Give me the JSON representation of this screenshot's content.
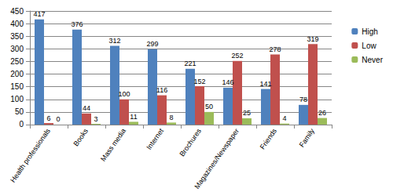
{
  "chart_data": {
    "type": "bar",
    "categories": [
      "Health professionals",
      "Books",
      "Mass media",
      "Internet",
      "Brochures",
      "Magazines/Newspaper",
      "Friends",
      "Family"
    ],
    "series": [
      {
        "name": "High",
        "color": "#4f81bd",
        "values": [
          417,
          376,
          312,
          299,
          221,
          146,
          141,
          78
        ]
      },
      {
        "name": "Low",
        "color": "#c0504d",
        "values": [
          6,
          44,
          100,
          116,
          152,
          252,
          278,
          319
        ]
      },
      {
        "name": "Never",
        "color": "#9bbb59",
        "values": [
          0,
          3,
          11,
          8,
          50,
          25,
          4,
          26
        ]
      }
    ],
    "ylim": [
      0,
      450
    ],
    "yticks": [
      0,
      50,
      100,
      150,
      200,
      250,
      300,
      350,
      400,
      450
    ],
    "grid": true,
    "legend": "right",
    "data_labels": true
  }
}
